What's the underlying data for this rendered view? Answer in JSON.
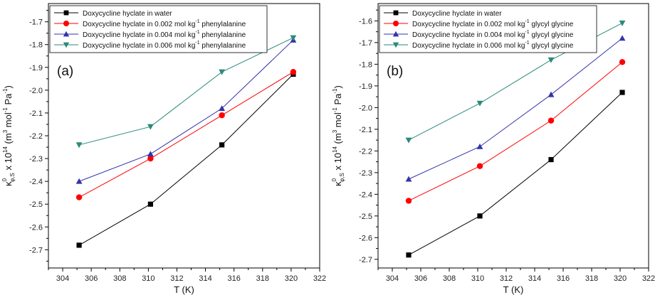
{
  "chart_data": [
    {
      "type": "line",
      "panel_label": "(a)",
      "xlabel": "T (K)",
      "ylabel": "κ⁰φ,S x 10¹⁴ (m³ mol⁻¹ Pa⁻¹)",
      "ylabel_parts": {
        "kappa": "κ",
        "sup1": "0",
        "sub": "φ,S",
        "mid": " x 10",
        "exp": "14",
        "u1": " (m",
        "u1sup": "3",
        "u2": " mol",
        "u2sup": "-1",
        "u3": " Pa",
        "u3sup": "-1",
        "u4": ")"
      },
      "xlim": [
        303,
        322
      ],
      "ylim": [
        -2.78,
        -1.62
      ],
      "xticks": [
        304,
        306,
        308,
        310,
        312,
        314,
        316,
        318,
        320,
        322
      ],
      "yticks": [
        -2.7,
        -2.6,
        -2.5,
        -2.4,
        -2.3,
        -2.2,
        -2.1,
        -2.0,
        -1.9,
        -1.8,
        -1.7
      ],
      "ytick_labels": [
        "-2.7",
        "-2.6",
        "-2.5",
        "-2.4",
        "-2.3",
        "-2.2",
        "-2.1",
        "-2.0",
        "-1.9",
        "-1.8",
        "-1.7"
      ],
      "x": [
        305.15,
        310.15,
        315.15,
        320.15
      ],
      "legend_position": "top-left",
      "series": [
        {
          "name": "Doxycycline hyclate in water",
          "name_parts": [
            "Doxycycline hyclate in water"
          ],
          "values": [
            -2.68,
            -2.5,
            -2.24,
            -1.93
          ],
          "color": "#000000",
          "marker": "square"
        },
        {
          "name": "Doxycycline hyclate in 0.002 mol kg-1 phenylalanine",
          "name_parts": [
            "Doxycycline hyclate in 0.002 mol kg",
            "-1",
            " phenylalanine"
          ],
          "values": [
            -2.47,
            -2.3,
            -2.11,
            -1.92
          ],
          "color": "#ff0000",
          "marker": "circle"
        },
        {
          "name": "Doxycycline hyclate in 0.004 mol kg-1 phenylalanine",
          "name_parts": [
            "Doxycycline hyclate in 0.004 mol kg",
            "-1",
            " phenylalanine"
          ],
          "values": [
            -2.4,
            -2.28,
            -2.08,
            -1.78
          ],
          "color": "#3333aa",
          "marker": "triangle-up"
        },
        {
          "name": "Doxycycline hyclate in 0.006 mol kg-1 phenylalanine",
          "name_parts": [
            "Doxycycline hyclate in 0.006 mol kg",
            "-1",
            " phenylalanine"
          ],
          "values": [
            -2.24,
            -2.16,
            -1.92,
            -1.77
          ],
          "color": "#2a8a7a",
          "marker": "triangle-down"
        }
      ]
    },
    {
      "type": "line",
      "panel_label": "(b)",
      "xlabel": "T (K)",
      "ylabel": "κ⁰φ,S x 10¹⁴ (m³ mol⁻¹ Pa⁻¹)",
      "ylabel_parts": {
        "kappa": "κ",
        "sup1": "0",
        "sub": "φ,S",
        "mid": " x 10",
        "exp": "14",
        "u1": " (m",
        "u1sup": "3",
        "u2": " mol",
        "u2sup": "-1",
        "u3": " Pa",
        "u3sup": "-1",
        "u4": ")"
      },
      "xlim": [
        303,
        322
      ],
      "ylim": [
        -2.74,
        -1.52
      ],
      "xticks": [
        304,
        306,
        308,
        310,
        312,
        314,
        316,
        318,
        320,
        322
      ],
      "yticks": [
        -2.7,
        -2.6,
        -2.5,
        -2.4,
        -2.3,
        -2.2,
        -2.1,
        -2.0,
        -1.9,
        -1.8,
        -1.7,
        -1.6
      ],
      "ytick_labels": [
        "-2.7",
        "-2.6",
        "-2.5",
        "-2.4",
        "-2.3",
        "-2.2",
        "-2.1",
        "-2.0",
        "-1.9",
        "-1.8",
        "-1.7",
        "-1.6"
      ],
      "x": [
        305.15,
        310.15,
        315.15,
        320.15
      ],
      "legend_position": "top-left",
      "series": [
        {
          "name": "Doxycycline hyclate in water",
          "name_parts": [
            "Doxycycline hyclate in water"
          ],
          "values": [
            -2.68,
            -2.5,
            -2.24,
            -1.93
          ],
          "color": "#000000",
          "marker": "square"
        },
        {
          "name": "Doxycycline hyclate in 0.002 mol kg-1 glycyl glycine",
          "name_parts": [
            "Doxycycline hyclate in 0.002 mol kg",
            "-1",
            " glycyl glycine"
          ],
          "values": [
            -2.43,
            -2.27,
            -2.06,
            -1.79
          ],
          "color": "#ff0000",
          "marker": "circle"
        },
        {
          "name": "Doxycycline hyclate in 0.004 mol kg-1 glycyl glycine",
          "name_parts": [
            "Doxycycline hyclate in 0.004 mol kg",
            "-1",
            " glycyl glycine"
          ],
          "values": [
            -2.33,
            -2.18,
            -1.94,
            -1.68
          ],
          "color": "#3333aa",
          "marker": "triangle-up"
        },
        {
          "name": "Doxycycline hyclate in 0.006 mol kg-1 glycyl glycine",
          "name_parts": [
            "Doxycycline hyclate in 0.006 mol kg",
            "-1",
            " glycyl glycine"
          ],
          "values": [
            -2.15,
            -1.98,
            -1.78,
            -1.61
          ],
          "color": "#2a8a7a",
          "marker": "triangle-down"
        }
      ]
    }
  ]
}
